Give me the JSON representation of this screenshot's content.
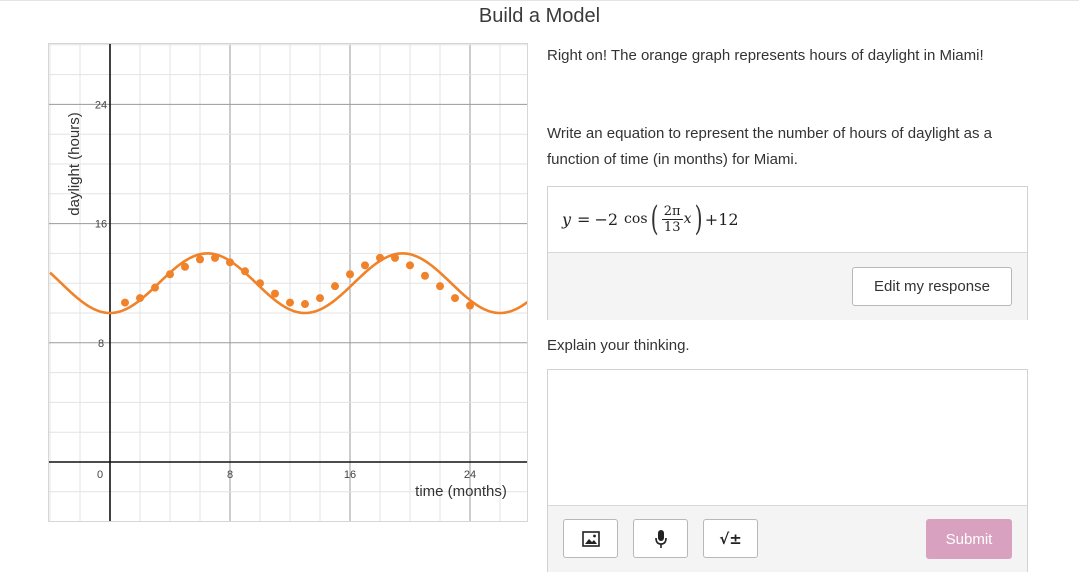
{
  "page": {
    "title": "Build a Model"
  },
  "graph": {
    "y_axis_label": "daylight (hours)",
    "x_axis_label": "time (months)",
    "x_ticks": [
      "0",
      "8",
      "16",
      "24"
    ],
    "y_ticks": [
      "8",
      "16",
      "24"
    ],
    "accent_color": "#f0822a",
    "chart_data": {
      "type": "scatter",
      "xlabel": "time (months)",
      "ylabel": "daylight (hours)",
      "xlim": [
        -4,
        28
      ],
      "ylim": [
        -4,
        28
      ],
      "x_ticks": [
        0,
        8,
        16,
        24
      ],
      "y_ticks": [
        8,
        16,
        24
      ],
      "grid": true,
      "series": [
        {
          "type": "scatter",
          "points": [
            [
              1,
              10.7
            ],
            [
              2,
              11.0
            ],
            [
              3,
              11.7
            ],
            [
              4,
              12.6
            ],
            [
              5,
              13.1
            ],
            [
              6,
              13.6
            ],
            [
              7,
              13.7
            ],
            [
              8,
              13.4
            ],
            [
              9,
              12.8
            ],
            [
              10,
              12.0
            ],
            [
              11,
              11.3
            ],
            [
              12,
              10.7
            ],
            [
              13,
              10.6
            ],
            [
              14,
              11.0
            ],
            [
              15,
              11.8
            ],
            [
              16,
              12.6
            ],
            [
              17,
              13.2
            ],
            [
              18,
              13.7
            ],
            [
              19,
              13.7
            ],
            [
              20,
              13.2
            ],
            [
              21,
              12.5
            ],
            [
              22,
              11.8
            ],
            [
              23,
              11.0
            ],
            [
              24,
              10.5
            ]
          ]
        },
        {
          "type": "line",
          "equation": "y = -2cos(2πx/13) + 12",
          "amplitude": -2,
          "period": 13,
          "midline": 12,
          "domain": [
            -4,
            28
          ]
        }
      ]
    }
  },
  "feedback": {
    "text": "Right on! The orange graph represents hours of daylight in Miami!"
  },
  "prompt": {
    "text": "Write an equation to represent the number of hours of daylight as a function of time (in months) for Miami."
  },
  "equation": {
    "lhs": "y",
    "equals": "=",
    "coef": "−2",
    "func": "cos",
    "num": "2π",
    "den": "13",
    "var": "x",
    "tail": "+12",
    "edit_label": "Edit my response"
  },
  "explain": {
    "label": "Explain your thinking.",
    "value": "",
    "tools": [
      "image-icon",
      "microphone-icon",
      "math-icon"
    ],
    "math_label": "√±",
    "submit_label": "Submit"
  }
}
